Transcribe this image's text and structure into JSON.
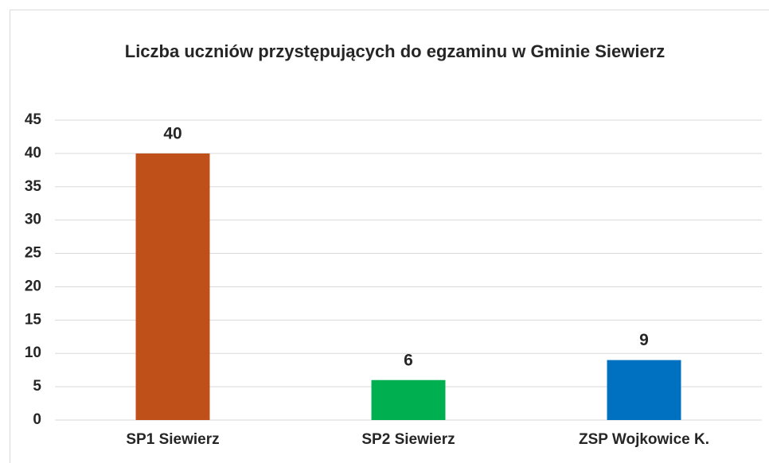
{
  "chart_data": {
    "type": "bar",
    "title": "Liczba uczniów przystępujących do egzaminu w Gminie Siewierz",
    "categories": [
      "SP1 Siewierz",
      "SP2 Siewierz",
      "ZSP Wojkowice K."
    ],
    "values": [
      40,
      6,
      9
    ],
    "colors": [
      "#c0501a",
      "#00b050",
      "#0070c0"
    ],
    "ylim": [
      0,
      45
    ],
    "yticks": [
      0,
      5,
      10,
      15,
      20,
      25,
      30,
      35,
      40,
      45
    ],
    "grid": true
  }
}
